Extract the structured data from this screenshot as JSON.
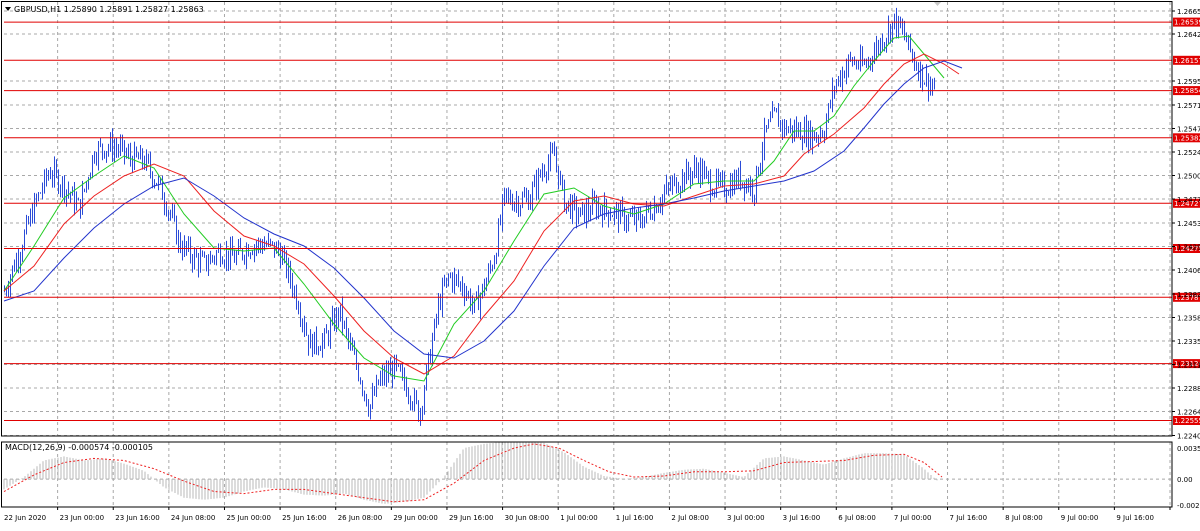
{
  "colors": {
    "background": "#ffffff",
    "grid": "#a8a8a8",
    "candles": "#2a4bd7",
    "level_lines": "#e00000",
    "level_label_bg": "#e00000",
    "level_label_text": "#ffffff",
    "ma_fast": "#22cc22",
    "ma_mid": "#ee2222",
    "ma_slow": "#2233cc",
    "macd_hist": "#b8b8b8",
    "macd_signal": "#ee2222",
    "text": "#000000"
  },
  "chart_data": [
    {
      "type": "candlestick",
      "title": "GBPUSD,H1 1.25890 1.25891 1.25827 1.25863",
      "ylim": [
        1.224,
        1.2674
      ],
      "y_ticks": [
        "1.26650",
        "1.26420",
        "1.25950",
        "1.25710",
        "1.25475",
        "1.25240",
        "1.25005",
        "1.24770",
        "1.24530",
        "1.24295",
        "1.24060",
        "1.23820",
        "1.23585",
        "1.23350",
        "1.23115",
        "1.22880",
        "1.22645",
        "1.22405"
      ],
      "x_labels": [
        "22 Jun 2020",
        "23 Jun 00:00",
        "23 Jun 16:00",
        "24 Jun 08:00",
        "25 Jun 00:00",
        "25 Jun 16:00",
        "26 Jun 08:00",
        "29 Jun 00:00",
        "29 Jun 16:00",
        "30 Jun 08:00",
        "1 Jul 00:00",
        "1 Jul 16:00",
        "2 Jul 08:00",
        "3 Jul 00:00",
        "3 Jul 16:00",
        "6 Jul 08:00",
        "7 Jul 00:00",
        "7 Jul 16:00",
        "8 Jul 08:00",
        "9 Jul 00:00",
        "9 Jul 16:00"
      ],
      "horizontal_levels": [
        "1.26539",
        "1.26157",
        "1.25854",
        "1.25382",
        "1.24727",
        "1.24275",
        "1.23787",
        "1.23124",
        "1.22555"
      ],
      "price_path": [
        [
          0,
          1.2385
        ],
        [
          15,
          1.2425
        ],
        [
          30,
          1.247
        ],
        [
          45,
          1.2505
        ],
        [
          60,
          1.249
        ],
        [
          75,
          1.2468
        ],
        [
          90,
          1.2525
        ],
        [
          105,
          1.253
        ],
        [
          115,
          1.2527
        ],
        [
          125,
          1.2518
        ],
        [
          140,
          1.2515
        ],
        [
          155,
          1.249
        ],
        [
          165,
          1.2465
        ],
        [
          175,
          1.2432
        ],
        [
          190,
          1.2418
        ],
        [
          200,
          1.2412
        ],
        [
          215,
          1.2425
        ],
        [
          230,
          1.2418
        ],
        [
          245,
          1.243
        ],
        [
          260,
          1.2432
        ],
        [
          275,
          1.2425
        ],
        [
          285,
          1.24
        ],
        [
          295,
          1.237
        ],
        [
          305,
          1.2332
        ],
        [
          320,
          1.2335
        ],
        [
          335,
          1.2365
        ],
        [
          345,
          1.233
        ],
        [
          355,
          1.2302
        ],
        [
          365,
          1.2268
        ],
        [
          375,
          1.2295
        ],
        [
          390,
          1.2308
        ],
        [
          405,
          1.2285
        ],
        [
          415,
          1.2262
        ],
        [
          425,
          1.2318
        ],
        [
          435,
          1.2375
        ],
        [
          445,
          1.24
        ],
        [
          460,
          1.2388
        ],
        [
          470,
          1.2368
        ],
        [
          480,
          1.239
        ],
        [
          490,
          1.242
        ],
        [
          500,
          1.2478
        ],
        [
          515,
          1.2475
        ],
        [
          525,
          1.2478
        ],
        [
          540,
          1.251
        ],
        [
          550,
          1.252
        ],
        [
          560,
          1.2475
        ],
        [
          575,
          1.246
        ],
        [
          590,
          1.247
        ],
        [
          605,
          1.2465
        ],
        [
          620,
          1.2458
        ],
        [
          635,
          1.2455
        ],
        [
          650,
          1.247
        ],
        [
          665,
          1.2488
        ],
        [
          680,
          1.25
        ],
        [
          695,
          1.2508
        ],
        [
          705,
          1.2492
        ],
        [
          720,
          1.2488
        ],
        [
          735,
          1.2498
        ],
        [
          750,
          1.2488
        ],
        [
          760,
          1.254
        ],
        [
          770,
          1.256
        ],
        [
          780,
          1.2548
        ],
        [
          795,
          1.2545
        ],
        [
          810,
          1.254
        ],
        [
          820,
          1.2548
        ],
        [
          830,
          1.259
        ],
        [
          845,
          1.2615
        ],
        [
          860,
          1.261
        ],
        [
          870,
          1.2625
        ],
        [
          880,
          1.264
        ],
        [
          890,
          1.2655
        ],
        [
          900,
          1.264
        ],
        [
          910,
          1.2615
        ],
        [
          920,
          1.2598
        ],
        [
          930,
          1.2588
        ]
      ],
      "moving_averages": [
        {
          "color_key": "ma_fast",
          "points": [
            [
              0,
              1.2385
            ],
            [
              30,
              1.243
            ],
            [
              60,
              1.2478
            ],
            [
              90,
              1.25
            ],
            [
              120,
              1.252
            ],
            [
              150,
              1.2508
            ],
            [
              180,
              1.2462
            ],
            [
              210,
              1.2428
            ],
            [
              240,
              1.2425
            ],
            [
              270,
              1.2428
            ],
            [
              300,
              1.2392
            ],
            [
              330,
              1.2352
            ],
            [
              360,
              1.2318
            ],
            [
              390,
              1.23
            ],
            [
              420,
              1.2295
            ],
            [
              450,
              1.2352
            ],
            [
              480,
              1.2385
            ],
            [
              510,
              1.2435
            ],
            [
              540,
              1.2482
            ],
            [
              570,
              1.2488
            ],
            [
              600,
              1.247
            ],
            [
              630,
              1.2462
            ],
            [
              660,
              1.2472
            ],
            [
              690,
              1.2492
            ],
            [
              720,
              1.2495
            ],
            [
              750,
              1.2495
            ],
            [
              770,
              1.2515
            ],
            [
              790,
              1.2545
            ],
            [
              810,
              1.2545
            ],
            [
              830,
              1.256
            ],
            [
              850,
              1.259
            ],
            [
              870,
              1.2615
            ],
            [
              890,
              1.2638
            ],
            [
              905,
              1.264
            ],
            [
              920,
              1.2622
            ],
            [
              940,
              1.2598
            ]
          ]
        },
        {
          "color_key": "ma_mid",
          "points": [
            [
              0,
              1.2385
            ],
            [
              30,
              1.241
            ],
            [
              60,
              1.2452
            ],
            [
              90,
              1.248
            ],
            [
              120,
              1.25
            ],
            [
              150,
              1.2512
            ],
            [
              180,
              1.25
            ],
            [
              210,
              1.2465
            ],
            [
              240,
              1.244
            ],
            [
              270,
              1.243
            ],
            [
              300,
              1.2412
            ],
            [
              330,
              1.238
            ],
            [
              360,
              1.2345
            ],
            [
              390,
              1.2318
            ],
            [
              420,
              1.2302
            ],
            [
              450,
              1.232
            ],
            [
              480,
              1.236
            ],
            [
              510,
              1.2395
            ],
            [
              540,
              1.2445
            ],
            [
              570,
              1.2475
            ],
            [
              600,
              1.248
            ],
            [
              630,
              1.2472
            ],
            [
              660,
              1.247
            ],
            [
              690,
              1.248
            ],
            [
              720,
              1.249
            ],
            [
              750,
              1.2492
            ],
            [
              780,
              1.25
            ],
            [
              800,
              1.2522
            ],
            [
              830,
              1.2542
            ],
            [
              860,
              1.2568
            ],
            [
              880,
              1.2592
            ],
            [
              900,
              1.2612
            ],
            [
              920,
              1.2622
            ],
            [
              940,
              1.2612
            ],
            [
              955,
              1.2602
            ]
          ]
        },
        {
          "color_key": "ma_slow",
          "points": [
            [
              0,
              1.2375
            ],
            [
              30,
              1.2385
            ],
            [
              60,
              1.2418
            ],
            [
              90,
              1.2448
            ],
            [
              120,
              1.2472
            ],
            [
              150,
              1.249
            ],
            [
              180,
              1.2498
            ],
            [
              210,
              1.248
            ],
            [
              240,
              1.2458
            ],
            [
              270,
              1.2442
            ],
            [
              300,
              1.243
            ],
            [
              330,
              1.2408
            ],
            [
              360,
              1.2378
            ],
            [
              390,
              1.2345
            ],
            [
              420,
              1.2322
            ],
            [
              450,
              1.2318
            ],
            [
              480,
              1.2335
            ],
            [
              510,
              1.2365
            ],
            [
              540,
              1.241
            ],
            [
              570,
              1.2448
            ],
            [
              600,
              1.2462
            ],
            [
              630,
              1.2468
            ],
            [
              660,
              1.2472
            ],
            [
              690,
              1.2478
            ],
            [
              720,
              1.2485
            ],
            [
              750,
              1.249
            ],
            [
              780,
              1.2495
            ],
            [
              810,
              1.2505
            ],
            [
              840,
              1.2525
            ],
            [
              860,
              1.2548
            ],
            [
              880,
              1.2572
            ],
            [
              900,
              1.2592
            ],
            [
              920,
              1.2608
            ],
            [
              940,
              1.2615
            ],
            [
              958,
              1.2608
            ]
          ]
        }
      ]
    },
    {
      "type": "bar",
      "title": "MACD(12,26,9) -0.000574 -0.000105",
      "ylim": [
        -0.0027,
        0.003585
      ],
      "y_ticks": [
        "0.003585",
        "0.00",
        "-0.00270"
      ],
      "histogram": [
        [
          0,
          -0.001
        ],
        [
          20,
          0.0002
        ],
        [
          40,
          0.0018
        ],
        [
          60,
          0.0022
        ],
        [
          80,
          0.0018
        ],
        [
          100,
          0.002
        ],
        [
          120,
          0.0015
        ],
        [
          140,
          0.0008
        ],
        [
          160,
          -0.0008
        ],
        [
          180,
          -0.0018
        ],
        [
          200,
          -0.002
        ],
        [
          220,
          -0.0018
        ],
        [
          240,
          -0.0012
        ],
        [
          260,
          -0.0008
        ],
        [
          280,
          -0.001
        ],
        [
          300,
          -0.0015
        ],
        [
          320,
          -0.0016
        ],
        [
          340,
          -0.0014
        ],
        [
          360,
          -0.002
        ],
        [
          380,
          -0.0024
        ],
        [
          400,
          -0.0022
        ],
        [
          420,
          -0.0018
        ],
        [
          440,
          0.0002
        ],
        [
          460,
          0.003
        ],
        [
          480,
          0.0034
        ],
        [
          500,
          0.0036
        ],
        [
          520,
          0.0036
        ],
        [
          540,
          0.0035
        ],
        [
          560,
          0.0026
        ],
        [
          580,
          0.0012
        ],
        [
          600,
          0.0003
        ],
        [
          620,
          0.0
        ],
        [
          640,
          0.0002
        ],
        [
          660,
          0.0006
        ],
        [
          680,
          0.0009
        ],
        [
          700,
          0.001
        ],
        [
          720,
          0.0006
        ],
        [
          740,
          0.0002
        ],
        [
          760,
          0.002
        ],
        [
          780,
          0.0022
        ],
        [
          800,
          0.0018
        ],
        [
          820,
          0.0014
        ],
        [
          840,
          0.002
        ],
        [
          860,
          0.0025
        ],
        [
          880,
          0.0025
        ],
        [
          900,
          0.0024
        ],
        [
          920,
          0.001
        ],
        [
          935,
          -0.0003
        ]
      ],
      "signal": [
        [
          0,
          -0.0012
        ],
        [
          30,
          0.0004
        ],
        [
          60,
          0.0016
        ],
        [
          90,
          0.002
        ],
        [
          120,
          0.0018
        ],
        [
          150,
          0.001
        ],
        [
          180,
          -0.0002
        ],
        [
          210,
          -0.0012
        ],
        [
          240,
          -0.0014
        ],
        [
          270,
          -0.001
        ],
        [
          300,
          -0.001
        ],
        [
          330,
          -0.0014
        ],
        [
          360,
          -0.0018
        ],
        [
          390,
          -0.0022
        ],
        [
          420,
          -0.002
        ],
        [
          450,
          -0.0004
        ],
        [
          480,
          0.0018
        ],
        [
          510,
          0.003
        ],
        [
          530,
          0.0034
        ],
        [
          555,
          0.003
        ],
        [
          580,
          0.0018
        ],
        [
          605,
          0.0007
        ],
        [
          630,
          0.0002
        ],
        [
          660,
          0.0003
        ],
        [
          690,
          0.0007
        ],
        [
          720,
          0.0007
        ],
        [
          750,
          0.0008
        ],
        [
          780,
          0.0016
        ],
        [
          810,
          0.0017
        ],
        [
          840,
          0.0018
        ],
        [
          870,
          0.0023
        ],
        [
          900,
          0.0024
        ],
        [
          920,
          0.0016
        ],
        [
          938,
          0.0002
        ]
      ]
    }
  ]
}
